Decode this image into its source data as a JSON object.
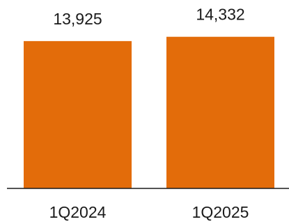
{
  "chart_data": {
    "type": "bar",
    "categories": [
      "1Q2024",
      "1Q2025"
    ],
    "values": [
      13925,
      14332
    ],
    "value_labels": [
      "13,925",
      "14,332"
    ],
    "title": "",
    "xlabel": "",
    "ylabel": "",
    "ylim": [
      0,
      15500
    ],
    "grid": false,
    "bar_color": "#E36C0A",
    "axis_color": "#1a1a1a"
  }
}
